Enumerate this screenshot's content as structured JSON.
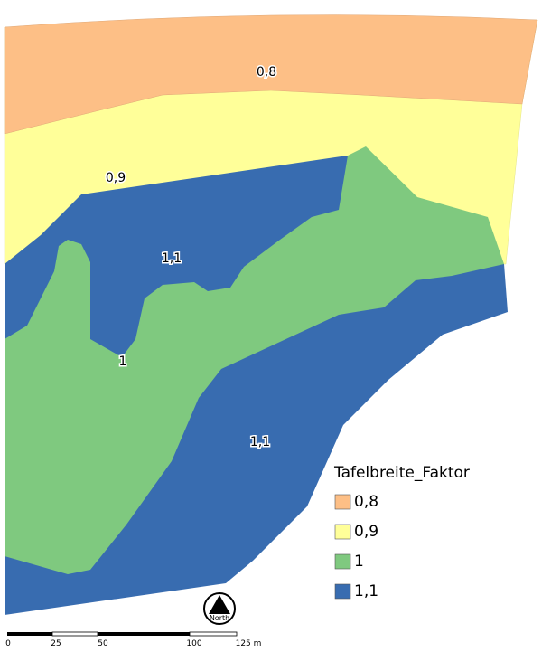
{
  "map": {
    "zone_labels": [
      "0,8",
      "0,9",
      "1,1",
      "1",
      "1,1"
    ],
    "legend": {
      "title": "Tafelbreite_Faktor",
      "items": [
        {
          "label": "0,8",
          "color": "#fdbf86"
        },
        {
          "label": "0,9",
          "color": "#ffff99"
        },
        {
          "label": "1",
          "color": "#7fc97f"
        },
        {
          "label": "1,1",
          "color": "#386cb0"
        }
      ]
    },
    "north": "North",
    "scale_labels": [
      "0",
      "25",
      "50",
      "100",
      "125 m"
    ]
  }
}
